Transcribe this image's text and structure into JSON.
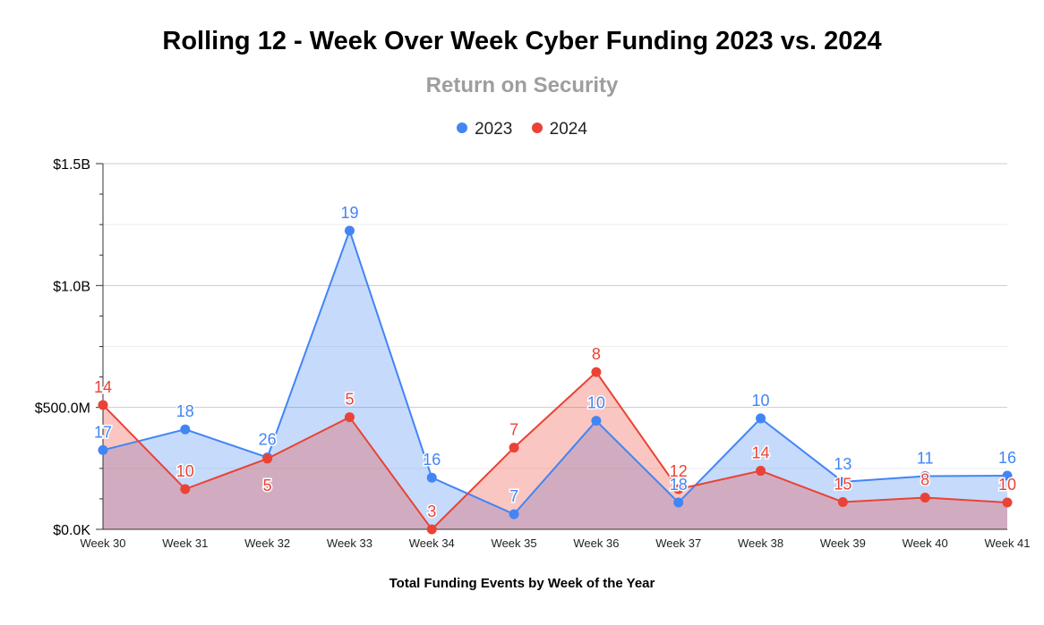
{
  "chart_data": {
    "type": "area",
    "title": "Rolling 12 - Week Over Week Cyber Funding 2023 vs. 2024",
    "subtitle": "Return on Security",
    "xlabel": "Total Funding Events by Week of the Year",
    "ylabel": "",
    "categories": [
      "Week 30",
      "Week 31",
      "Week 32",
      "Week 33",
      "Week 34",
      "Week 35",
      "Week 36",
      "Week 37",
      "Week 38",
      "Week 39",
      "Week 40",
      "Week 41"
    ],
    "ylim": [
      0,
      1500000000
    ],
    "y_ticks": [
      {
        "value": 0,
        "label": "$0.0K"
      },
      {
        "value": 500000000,
        "label": "$500.0M"
      },
      {
        "value": 1000000000,
        "label": "$1.0B"
      },
      {
        "value": 1500000000,
        "label": "$1.5B"
      }
    ],
    "grid": true,
    "legend_position": "top",
    "series": [
      {
        "name": "2023",
        "color": "#4285f4",
        "fill": "#c6d9f8",
        "values": [
          325000000,
          410000000,
          295000000,
          1225000000,
          212000000,
          62000000,
          445000000,
          110000000,
          455000000,
          195000000,
          218000000,
          220000000
        ],
        "labels": [
          "17",
          "18",
          "26",
          "19",
          "16",
          "7",
          "10",
          "18",
          "10",
          "13",
          "11",
          "16"
        ]
      },
      {
        "name": "2024",
        "color": "#ea4335",
        "fill": "#f7c0b9",
        "values": [
          510000000,
          165000000,
          290000000,
          460000000,
          0,
          335000000,
          645000000,
          165000000,
          240000000,
          112000000,
          130000000,
          110000000
        ],
        "labels": [
          "14",
          "10",
          "5",
          "5",
          "3",
          "7",
          "8",
          "12",
          "14",
          "15",
          "8",
          "10"
        ]
      }
    ]
  }
}
